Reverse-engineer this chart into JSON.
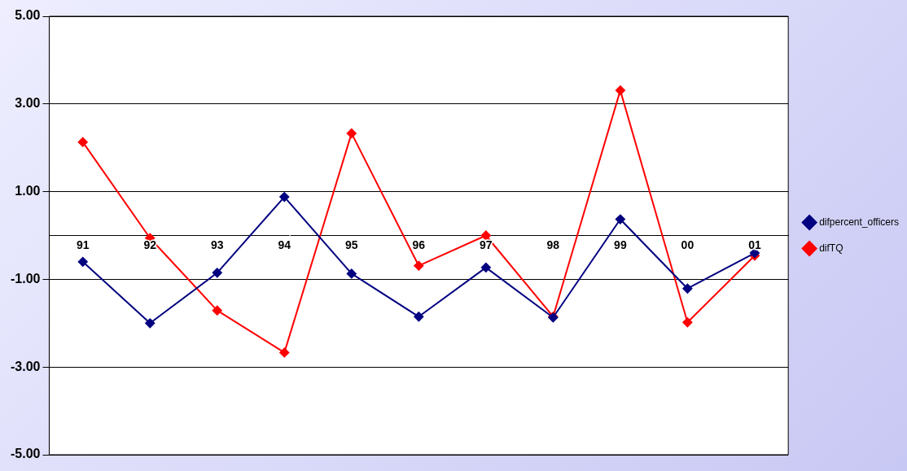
{
  "chart_data": {
    "type": "line",
    "categories": [
      "91",
      "92",
      "93",
      "94",
      "95",
      "96",
      "97",
      "98",
      "99",
      "00",
      "01"
    ],
    "series": [
      {
        "name": "difpercent_officers",
        "color": "#000080",
        "values": [
          -0.6,
          -2.0,
          -0.85,
          0.88,
          -0.87,
          -1.85,
          -0.73,
          -1.87,
          0.37,
          -1.21,
          -0.4
        ]
      },
      {
        "name": "difTQ",
        "color": "#ff0000",
        "values": [
          2.13,
          -0.06,
          -1.71,
          -2.67,
          2.33,
          -0.69,
          0.0,
          -1.85,
          3.31,
          -1.98,
          -0.46
        ]
      }
    ],
    "ylim": [
      -5,
      5
    ],
    "yticks": [
      {
        "value": -5,
        "label": "-5.00"
      },
      {
        "value": -3,
        "label": "-3.00"
      },
      {
        "value": -1,
        "label": "-1.00"
      },
      {
        "value": 1,
        "label": "1.00"
      },
      {
        "value": 3,
        "label": "3.00"
      },
      {
        "value": 5,
        "label": "5.00"
      }
    ],
    "grid": "y",
    "legend": "right",
    "marker": "diamond",
    "line_style": "solid"
  }
}
